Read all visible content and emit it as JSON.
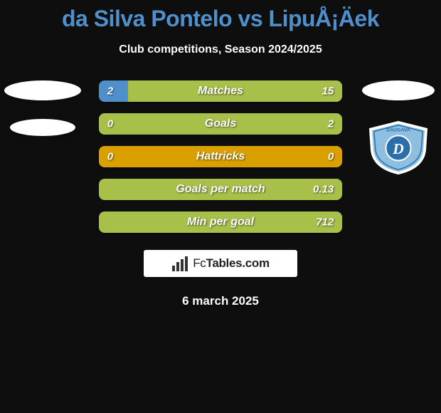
{
  "background_color": "#0e0e0e",
  "title": {
    "text": "da Silva Pontelo vs LipuÅ¡Äek",
    "color": "#4f8fcc",
    "fontsize": 32
  },
  "subtitle": {
    "text": "Club competitions, Season 2024/2025",
    "color": "#ffffff",
    "fontsize": 16
  },
  "left_badges": {
    "ellipse1_color": "#ffffff",
    "ellipse2_color": "#ffffff"
  },
  "right_badges": {
    "ellipse_color": "#ffffff",
    "crest": {
      "name": "DAUGAVA",
      "shield_fill": "#8fbfe0",
      "border": "#ffffff",
      "accent": "#2a6fab",
      "letter": "D"
    }
  },
  "stats": [
    {
      "label": "Matches",
      "left_value": "2",
      "right_value": "15",
      "left_color": "#4f8fcc",
      "right_color": "#a7c04a",
      "left_pct": 12,
      "right_pct": 88
    },
    {
      "label": "Goals",
      "left_value": "0",
      "right_value": "2",
      "left_color": "#4f8fcc",
      "right_color": "#a7c04a",
      "left_pct": 0,
      "right_pct": 100
    },
    {
      "label": "Hattricks",
      "left_value": "0",
      "right_value": "0",
      "left_color": "#4f8fcc",
      "right_color": "#a7c04a",
      "left_pct": 50,
      "right_pct": 50,
      "neutral": true,
      "neutral_color": "#d9a000"
    },
    {
      "label": "Goals per match",
      "left_value": "",
      "right_value": "0.13",
      "left_color": "#4f8fcc",
      "right_color": "#a7c04a",
      "left_pct": 0,
      "right_pct": 100
    },
    {
      "label": "Min per goal",
      "left_value": "",
      "right_value": "712",
      "left_color": "#4f8fcc",
      "right_color": "#a7c04a",
      "left_pct": 0,
      "right_pct": 100
    }
  ],
  "stat_bar": {
    "height": 30,
    "radius": 8,
    "label_color": "#ffffff",
    "label_fontsize": 16,
    "value_fontsize": 15
  },
  "logo": {
    "icon_color": "#333333",
    "text_prefix": "Fc",
    "text_suffix": "Tables.com",
    "text_color": "#222222",
    "bg_color": "#ffffff"
  },
  "date": {
    "text": "6 march 2025",
    "color": "#ffffff",
    "fontsize": 17
  }
}
